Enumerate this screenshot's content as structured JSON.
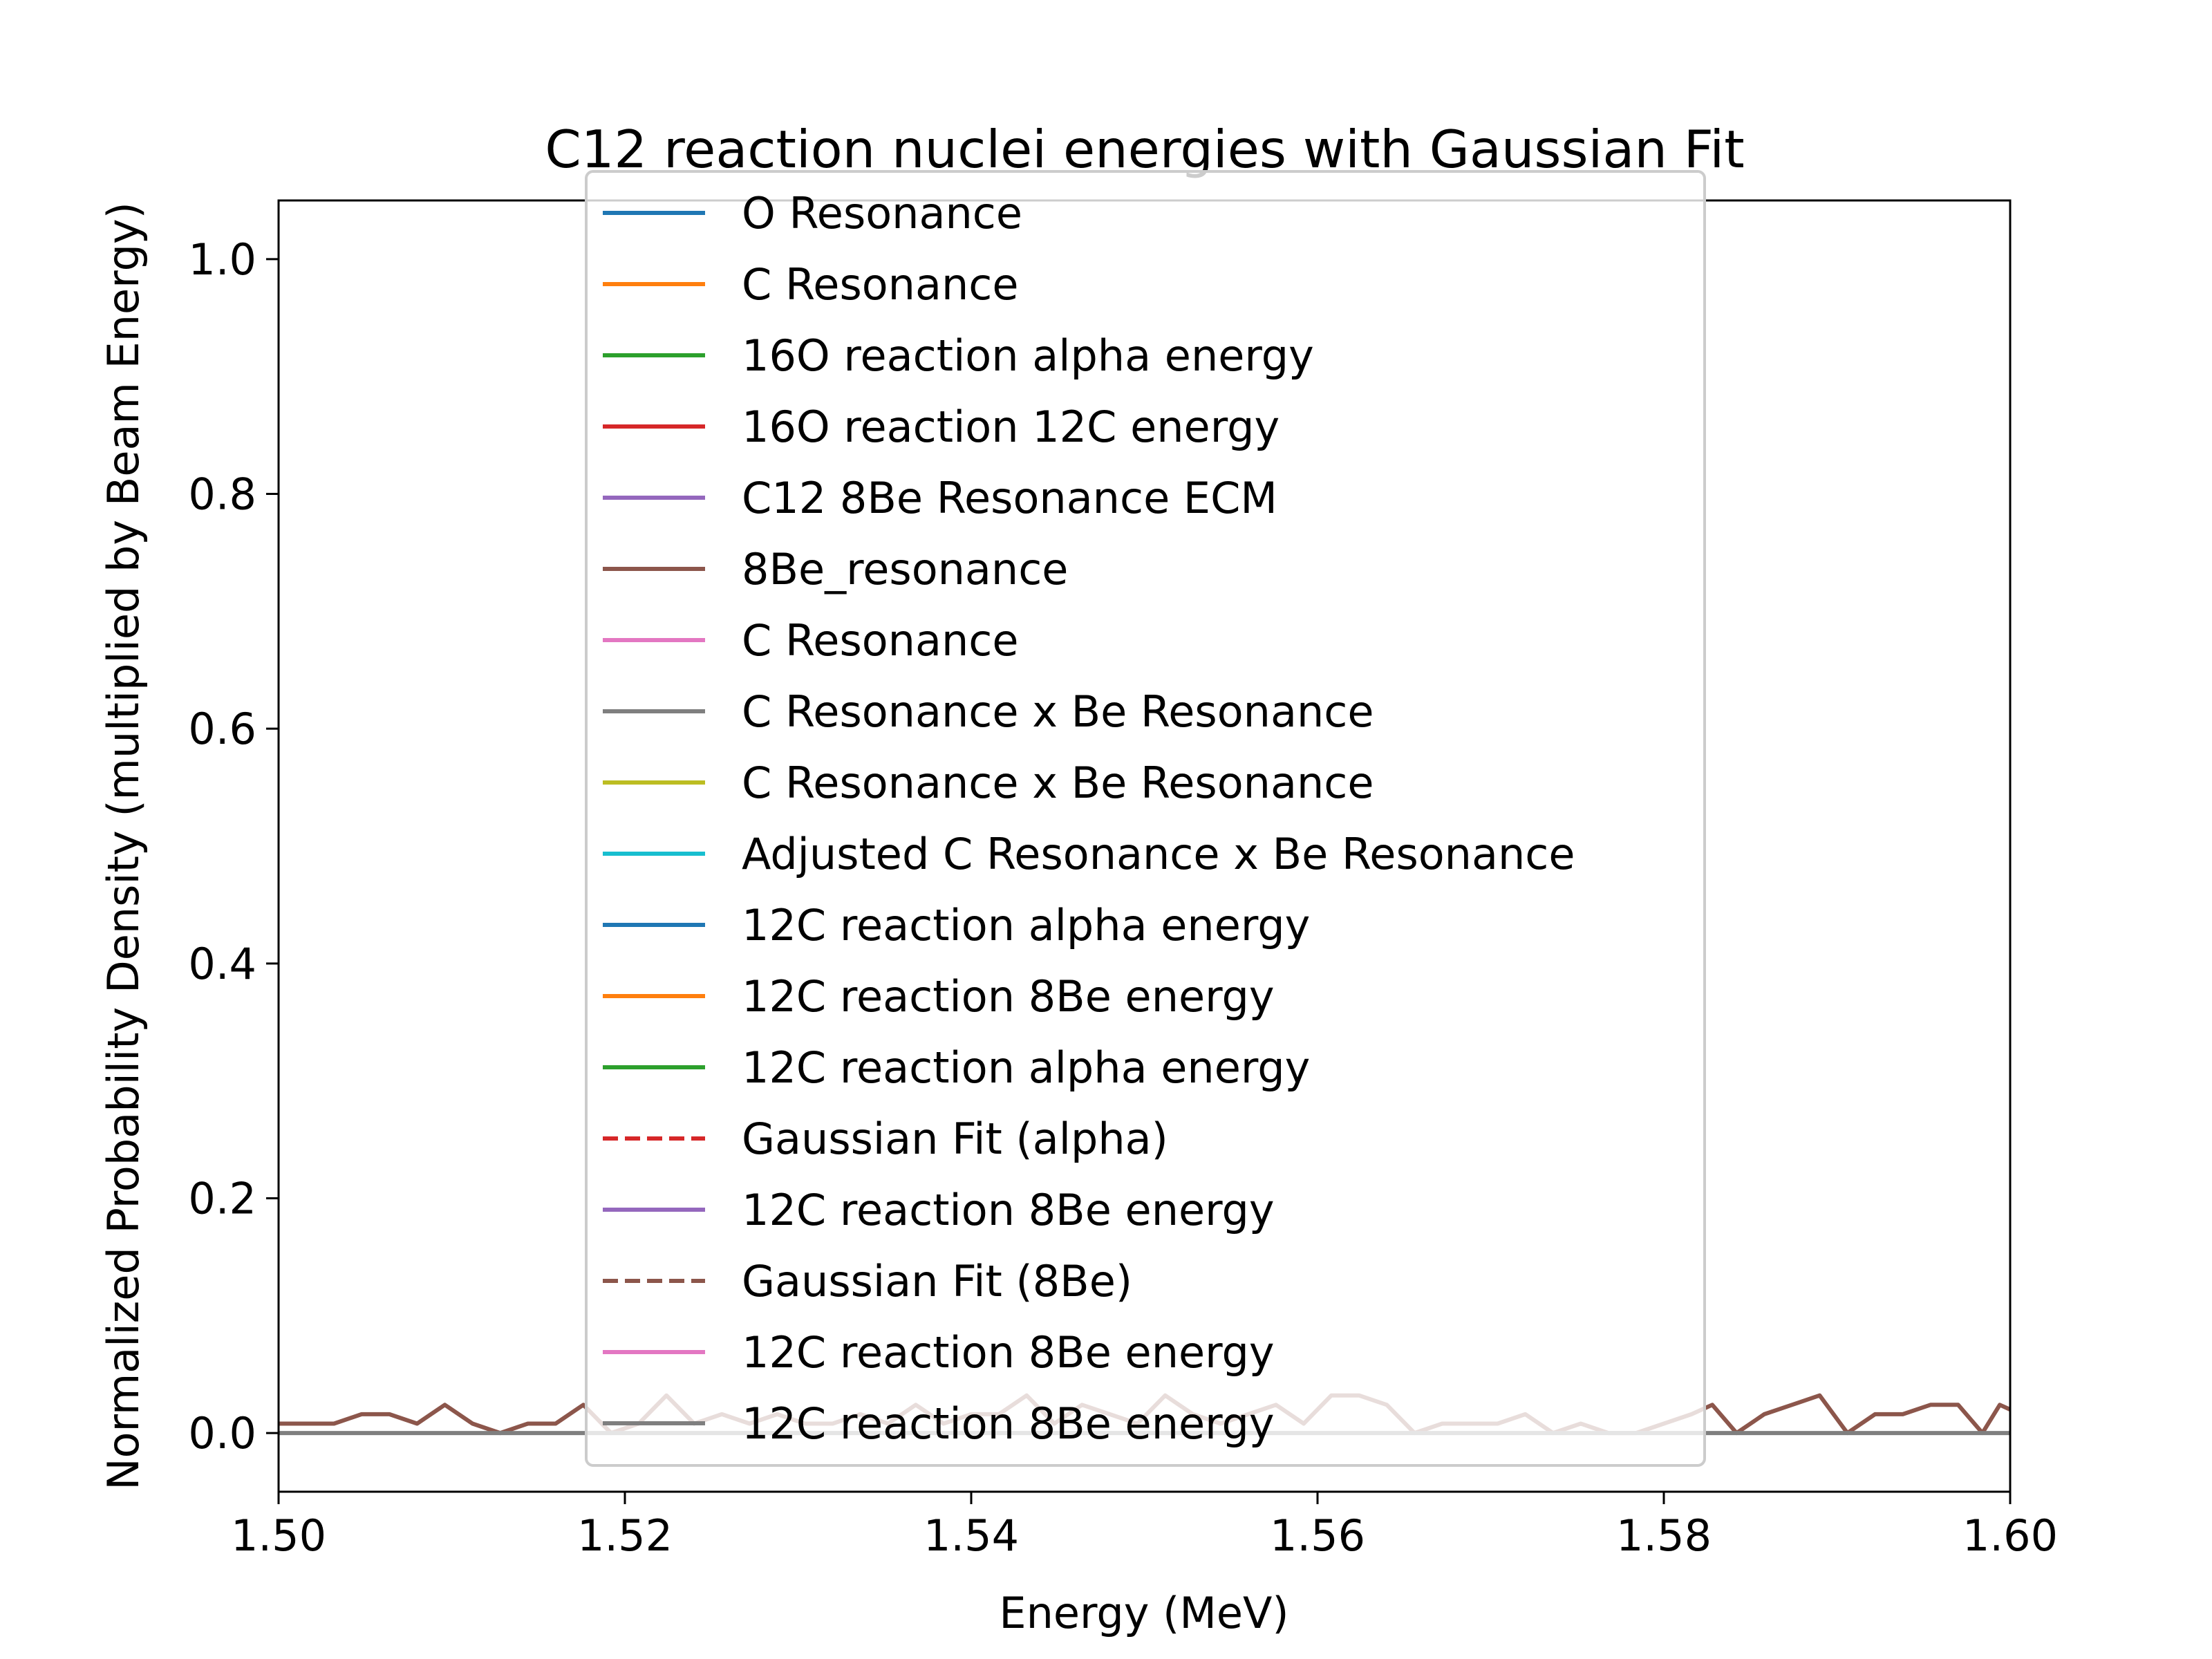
{
  "chart_data": {
    "type": "line",
    "title": "C12 reaction nuclei energies with Gaussian Fit",
    "xlabel": "Energy (MeV)",
    "ylabel": "Normalized Probability Density (multiplied by Beam Energy)",
    "xlim": [
      1.5,
      1.6
    ],
    "ylim": [
      -0.05,
      1.05
    ],
    "xticks": [
      1.5,
      1.52,
      1.54,
      1.56,
      1.58,
      1.6
    ],
    "xtick_labels": [
      "1.50",
      "1.52",
      "1.54",
      "1.56",
      "1.58",
      "1.60"
    ],
    "yticks": [
      0.0,
      0.2,
      0.4,
      0.6,
      0.8,
      1.0
    ],
    "ytick_labels": [
      "0.0",
      "0.2",
      "0.4",
      "0.6",
      "0.8",
      "1.0"
    ],
    "grid": false,
    "legend_position": "upper-center",
    "legend": [
      {
        "name": "O Resonance",
        "color": "#1f77b4",
        "style": "solid"
      },
      {
        "name": "C Resonance",
        "color": "#ff7f0e",
        "style": "solid"
      },
      {
        "name": "16O reaction alpha energy",
        "color": "#2ca02c",
        "style": "solid"
      },
      {
        "name": "16O reaction 12C energy",
        "color": "#d62728",
        "style": "solid"
      },
      {
        "name": "C12  8Be Resonance ECM",
        "color": "#9467bd",
        "style": "solid"
      },
      {
        "name": "8Be_resonance",
        "color": "#8c564b",
        "style": "solid"
      },
      {
        "name": "C Resonance",
        "color": "#e377c2",
        "style": "solid"
      },
      {
        "name": "C Resonance x Be Resonance",
        "color": "#7f7f7f",
        "style": "solid"
      },
      {
        "name": "C Resonance x Be Resonance",
        "color": "#bcbd22",
        "style": "solid"
      },
      {
        "name": "Adjusted C Resonance x Be Resonance",
        "color": "#17becf",
        "style": "solid"
      },
      {
        "name": "12C reaction alpha energy",
        "color": "#1f77b4",
        "style": "solid"
      },
      {
        "name": "12C reaction 8Be energy",
        "color": "#ff7f0e",
        "style": "solid"
      },
      {
        "name": "12C reaction alpha energy",
        "color": "#2ca02c",
        "style": "solid"
      },
      {
        "name": "Gaussian Fit (alpha)",
        "color": "#d62728",
        "style": "dashed"
      },
      {
        "name": "12C reaction 8Be energy",
        "color": "#9467bd",
        "style": "solid"
      },
      {
        "name": "Gaussian Fit (8Be)",
        "color": "#8c564b",
        "style": "dashed"
      },
      {
        "name": "12C reaction 8Be energy",
        "color": "#e377c2",
        "style": "solid"
      },
      {
        "name": "12C reaction 8Be energy",
        "color": "#7f7f7f",
        "style": "solid"
      }
    ],
    "series": [
      {
        "color": "#8c564b",
        "x": [
          1.5,
          1.5016,
          1.5032,
          1.5048,
          1.5064,
          1.508,
          1.5096,
          1.5112,
          1.5128,
          1.5144,
          1.516,
          1.5176,
          1.5192,
          1.5208,
          1.5224,
          1.524,
          1.5256,
          1.5272,
          1.5288,
          1.5304,
          1.532,
          1.5336,
          1.5352,
          1.5368,
          1.5384,
          1.54,
          1.5416,
          1.5432,
          1.5448,
          1.5464,
          1.548,
          1.5496,
          1.5512,
          1.5528,
          1.5544,
          1.556,
          1.5576,
          1.5592,
          1.5608,
          1.5624,
          1.564,
          1.5656,
          1.5672,
          1.5688,
          1.5704,
          1.572,
          1.5736,
          1.5752,
          1.5768,
          1.5784,
          1.58,
          1.5816,
          1.5828,
          1.5842,
          1.5858,
          1.5874,
          1.589,
          1.5906,
          1.5922,
          1.5938,
          1.5954,
          1.597,
          1.5984,
          1.5994,
          1.6
        ],
        "values": [
          0.008,
          0.008,
          0.008,
          0.016,
          0.016,
          0.008,
          0.024,
          0.008,
          0.0,
          0.008,
          0.008,
          0.024,
          0.0,
          0.008,
          0.032,
          0.008,
          0.016,
          0.008,
          0.016,
          0.008,
          0.008,
          0.016,
          0.008,
          0.024,
          0.008,
          0.016,
          0.016,
          0.032,
          0.008,
          0.024,
          0.016,
          0.008,
          0.032,
          0.016,
          0.008,
          0.016,
          0.024,
          0.008,
          0.032,
          0.032,
          0.024,
          0.0,
          0.008,
          0.008,
          0.008,
          0.016,
          0.0,
          0.008,
          0.0,
          0.0,
          0.008,
          0.016,
          0.024,
          0.0,
          0.016,
          0.024,
          0.032,
          0.0,
          0.016,
          0.016,
          0.024,
          0.024,
          0.0,
          0.024,
          0.02
        ]
      },
      {
        "color": "#7f7f7f",
        "x": [
          1.5,
          1.6
        ],
        "values": [
          0.0,
          0.0
        ]
      }
    ]
  }
}
